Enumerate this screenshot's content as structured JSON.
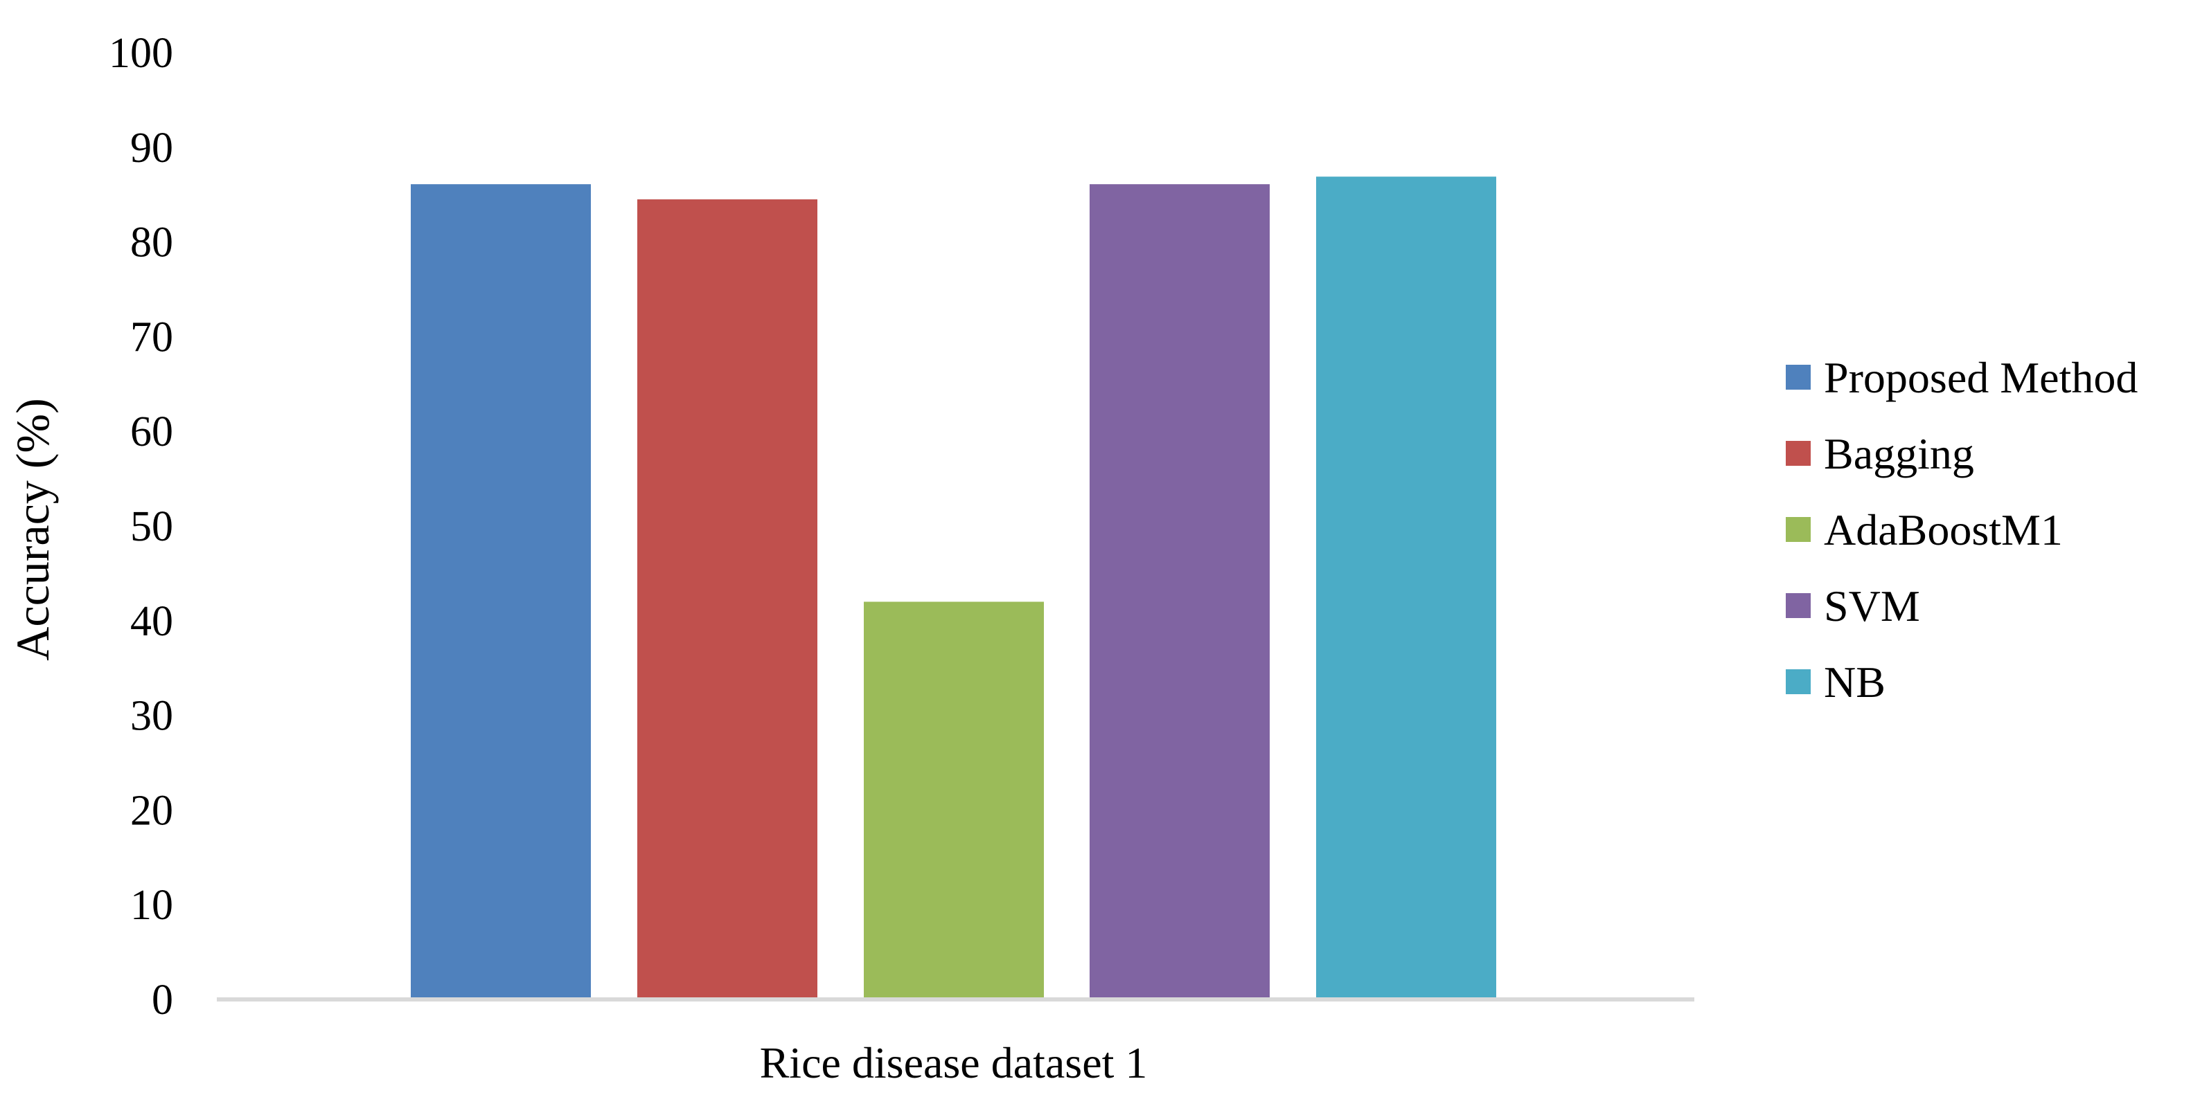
{
  "chart_data": {
    "type": "bar",
    "title": "",
    "xlabel": "",
    "ylabel": "Accuracy (%)",
    "ylim": [
      0,
      100
    ],
    "yticks": [
      0,
      10,
      20,
      30,
      40,
      50,
      60,
      70,
      80,
      90,
      100
    ],
    "grid": false,
    "legend_position": "right",
    "categories": [
      "Rice disease dataset 1"
    ],
    "series": [
      {
        "name": "Proposed Method",
        "values": [
          86.1
        ],
        "color": "#4F81BD"
      },
      {
        "name": "Bagging",
        "values": [
          84.5
        ],
        "color": "#C0504D"
      },
      {
        "name": "AdaBoostM1",
        "values": [
          42.0
        ],
        "color": "#9BBB59"
      },
      {
        "name": "SVM",
        "values": [
          86.1
        ],
        "color": "#8064A2"
      },
      {
        "name": "NB",
        "values": [
          86.9
        ],
        "color": "#4BACC6"
      }
    ],
    "axis_line_color": "#D9D9D9"
  }
}
